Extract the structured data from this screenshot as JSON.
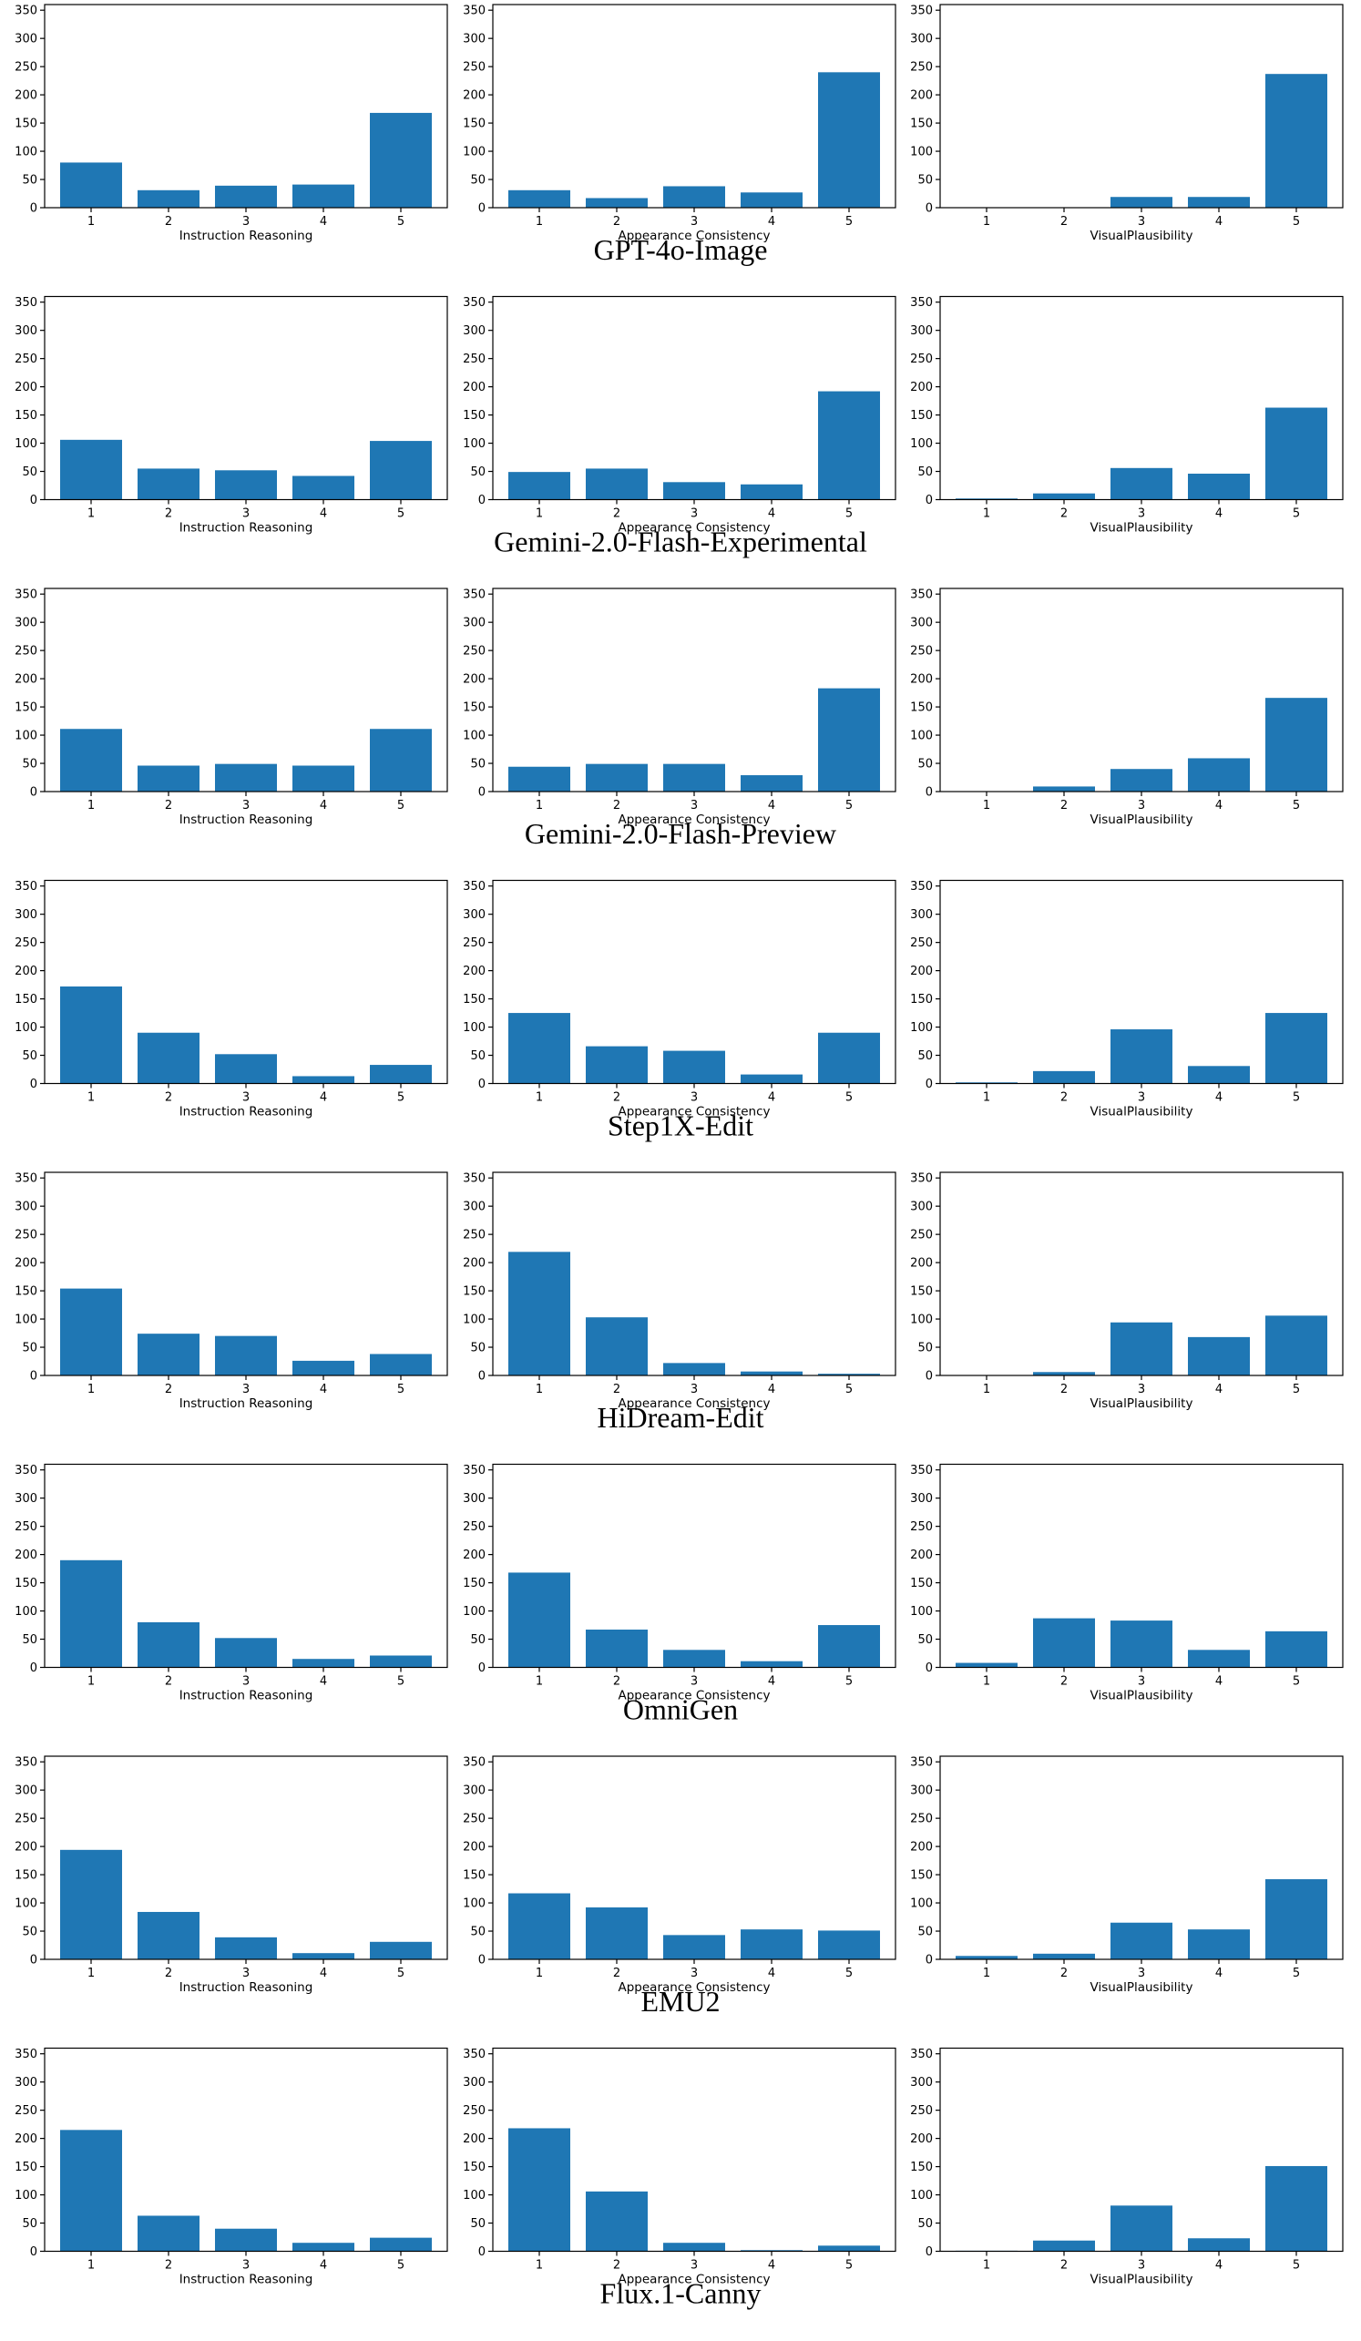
{
  "figure": {
    "bar_color": "#1f77b4",
    "y_ticks": [
      0,
      50,
      100,
      150,
      200,
      250,
      300,
      350
    ]
  },
  "chart_data": [
    {
      "model": "GPT-4o-Image",
      "panels": [
        {
          "type": "bar",
          "xlabel": "Instruction Reasoning",
          "categories": [
            "1",
            "2",
            "3",
            "4",
            "5"
          ],
          "values": [
            80,
            31,
            39,
            41,
            168
          ],
          "ylim": [
            0,
            360
          ]
        },
        {
          "type": "bar",
          "xlabel": "Appearance Consistency",
          "categories": [
            "1",
            "2",
            "3",
            "4",
            "5"
          ],
          "values": [
            31,
            17,
            38,
            27,
            240
          ],
          "ylim": [
            0,
            360
          ]
        },
        {
          "type": "bar",
          "xlabel": "VisualPlausibility",
          "categories": [
            "1",
            "2",
            "3",
            "4",
            "5"
          ],
          "values": [
            0,
            0,
            19,
            19,
            237
          ],
          "ylim": [
            0,
            360
          ]
        }
      ]
    },
    {
      "model": "Gemini-2.0-Flash-Experimental",
      "panels": [
        {
          "type": "bar",
          "xlabel": "Instruction Reasoning",
          "categories": [
            "1",
            "2",
            "3",
            "4",
            "5"
          ],
          "values": [
            106,
            55,
            52,
            42,
            104
          ],
          "ylim": [
            0,
            360
          ]
        },
        {
          "type": "bar",
          "xlabel": "Appearance Consistency",
          "categories": [
            "1",
            "2",
            "3",
            "4",
            "5"
          ],
          "values": [
            49,
            55,
            31,
            27,
            192
          ],
          "ylim": [
            0,
            360
          ]
        },
        {
          "type": "bar",
          "xlabel": "VisualPlausibility",
          "categories": [
            "1",
            "2",
            "3",
            "4",
            "5"
          ],
          "values": [
            2,
            11,
            56,
            46,
            163
          ],
          "ylim": [
            0,
            360
          ]
        }
      ]
    },
    {
      "model": "Gemini-2.0-Flash-Preview",
      "panels": [
        {
          "type": "bar",
          "xlabel": "Instruction Reasoning",
          "categories": [
            "1",
            "2",
            "3",
            "4",
            "5"
          ],
          "values": [
            111,
            46,
            49,
            46,
            111
          ],
          "ylim": [
            0,
            360
          ]
        },
        {
          "type": "bar",
          "xlabel": "Appearance Consistency",
          "categories": [
            "1",
            "2",
            "3",
            "4",
            "5"
          ],
          "values": [
            44,
            49,
            49,
            29,
            183
          ],
          "ylim": [
            0,
            360
          ]
        },
        {
          "type": "bar",
          "xlabel": "VisualPlausibility",
          "categories": [
            "1",
            "2",
            "3",
            "4",
            "5"
          ],
          "values": [
            0,
            9,
            40,
            59,
            166
          ],
          "ylim": [
            0,
            360
          ]
        }
      ]
    },
    {
      "model": "Step1X-Edit",
      "panels": [
        {
          "type": "bar",
          "xlabel": "Instruction Reasoning",
          "categories": [
            "1",
            "2",
            "3",
            "4",
            "5"
          ],
          "values": [
            172,
            90,
            52,
            13,
            33
          ],
          "ylim": [
            0,
            360
          ]
        },
        {
          "type": "bar",
          "xlabel": "Appearance Consistency",
          "categories": [
            "1",
            "2",
            "3",
            "4",
            "5"
          ],
          "values": [
            125,
            66,
            58,
            16,
            90
          ],
          "ylim": [
            0,
            360
          ]
        },
        {
          "type": "bar",
          "xlabel": "VisualPlausibility",
          "categories": [
            "1",
            "2",
            "3",
            "4",
            "5"
          ],
          "values": [
            2,
            22,
            96,
            31,
            125
          ],
          "ylim": [
            0,
            360
          ]
        }
      ]
    },
    {
      "model": "HiDream-Edit",
      "panels": [
        {
          "type": "bar",
          "xlabel": "Instruction Reasoning",
          "categories": [
            "1",
            "2",
            "3",
            "4",
            "5"
          ],
          "values": [
            154,
            74,
            70,
            26,
            38
          ],
          "ylim": [
            0,
            360
          ]
        },
        {
          "type": "bar",
          "xlabel": "Appearance Consistency",
          "categories": [
            "1",
            "2",
            "3",
            "4",
            "5"
          ],
          "values": [
            219,
            103,
            22,
            7,
            3
          ],
          "ylim": [
            0,
            360
          ]
        },
        {
          "type": "bar",
          "xlabel": "VisualPlausibility",
          "categories": [
            "1",
            "2",
            "3",
            "4",
            "5"
          ],
          "values": [
            0,
            6,
            94,
            68,
            106
          ],
          "ylim": [
            0,
            360
          ]
        }
      ]
    },
    {
      "model": "OmniGen",
      "panels": [
        {
          "type": "bar",
          "xlabel": "Instruction Reasoning",
          "categories": [
            "1",
            "2",
            "3",
            "4",
            "5"
          ],
          "values": [
            190,
            80,
            52,
            15,
            21
          ],
          "ylim": [
            0,
            360
          ]
        },
        {
          "type": "bar",
          "xlabel": "Appearance Consistency",
          "categories": [
            "1",
            "2",
            "3",
            "4",
            "5"
          ],
          "values": [
            168,
            67,
            31,
            11,
            75
          ],
          "ylim": [
            0,
            360
          ]
        },
        {
          "type": "bar",
          "xlabel": "VisualPlausibility",
          "categories": [
            "1",
            "2",
            "3",
            "4",
            "5"
          ],
          "values": [
            8,
            87,
            83,
            31,
            64
          ],
          "ylim": [
            0,
            360
          ]
        }
      ]
    },
    {
      "model": "EMU2",
      "panels": [
        {
          "type": "bar",
          "xlabel": "Instruction Reasoning",
          "categories": [
            "1",
            "2",
            "3",
            "4",
            "5"
          ],
          "values": [
            194,
            84,
            39,
            11,
            31
          ],
          "ylim": [
            0,
            360
          ]
        },
        {
          "type": "bar",
          "xlabel": "Appearance Consistency",
          "categories": [
            "1",
            "2",
            "3",
            "4",
            "5"
          ],
          "values": [
            117,
            92,
            43,
            53,
            51
          ],
          "ylim": [
            0,
            360
          ]
        },
        {
          "type": "bar",
          "xlabel": "VisualPlausibility",
          "categories": [
            "1",
            "2",
            "3",
            "4",
            "5"
          ],
          "values": [
            6,
            10,
            65,
            53,
            142
          ],
          "ylim": [
            0,
            360
          ]
        }
      ]
    },
    {
      "model": "Flux.1-Canny",
      "panels": [
        {
          "type": "bar",
          "xlabel": "Instruction Reasoning",
          "categories": [
            "1",
            "2",
            "3",
            "4",
            "5"
          ],
          "values": [
            215,
            63,
            40,
            15,
            24
          ],
          "ylim": [
            0,
            360
          ]
        },
        {
          "type": "bar",
          "xlabel": "Appearance Consistency",
          "categories": [
            "1",
            "2",
            "3",
            "4",
            "5"
          ],
          "values": [
            218,
            106,
            15,
            2,
            10
          ],
          "ylim": [
            0,
            360
          ]
        },
        {
          "type": "bar",
          "xlabel": "VisualPlausibility",
          "categories": [
            "1",
            "2",
            "3",
            "4",
            "5"
          ],
          "values": [
            1,
            19,
            81,
            23,
            151
          ],
          "ylim": [
            0,
            360
          ]
        }
      ]
    }
  ]
}
